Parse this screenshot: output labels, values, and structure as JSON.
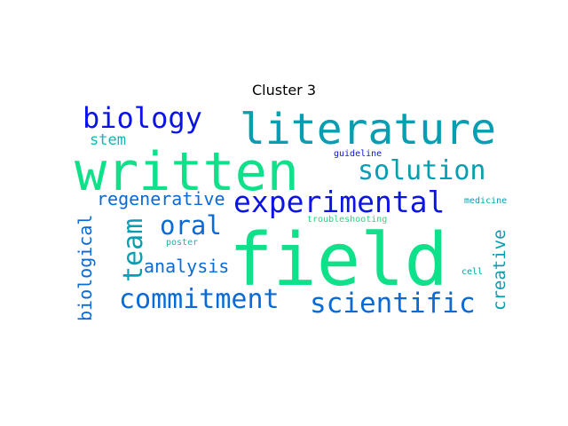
{
  "title": "Cluster 3",
  "colors": {
    "green": "#0fe08a",
    "teal": "#069eb0",
    "blue": "#0a14e6",
    "mid_blue": "#0a6ad6",
    "light_teal": "#12b6b0",
    "bright_green": "#22d882"
  },
  "words": [
    {
      "text": "field",
      "color_key": "green"
    },
    {
      "text": "written",
      "color_key": "green"
    },
    {
      "text": "literature",
      "color_key": "teal"
    },
    {
      "text": "experimental",
      "color_key": "blue"
    },
    {
      "text": "biology",
      "color_key": "blue"
    },
    {
      "text": "solution",
      "color_key": "teal"
    },
    {
      "text": "commitment",
      "color_key": "mid_blue"
    },
    {
      "text": "scientific",
      "color_key": "mid_blue"
    },
    {
      "text": "oral",
      "color_key": "mid_blue"
    },
    {
      "text": "team",
      "color_key": "teal"
    },
    {
      "text": "analysis",
      "color_key": "mid_blue"
    },
    {
      "text": "regenerative",
      "color_key": "mid_blue"
    },
    {
      "text": "biological",
      "color_key": "mid_blue"
    },
    {
      "text": "creative",
      "color_key": "teal"
    },
    {
      "text": "stem",
      "color_key": "light_teal"
    },
    {
      "text": "guideline",
      "color_key": "blue"
    },
    {
      "text": "medicine",
      "color_key": "teal"
    },
    {
      "text": "troubleshooting",
      "color_key": "bright_green"
    },
    {
      "text": "poster",
      "color_key": "light_teal"
    },
    {
      "text": "cell",
      "color_key": "teal"
    }
  ]
}
